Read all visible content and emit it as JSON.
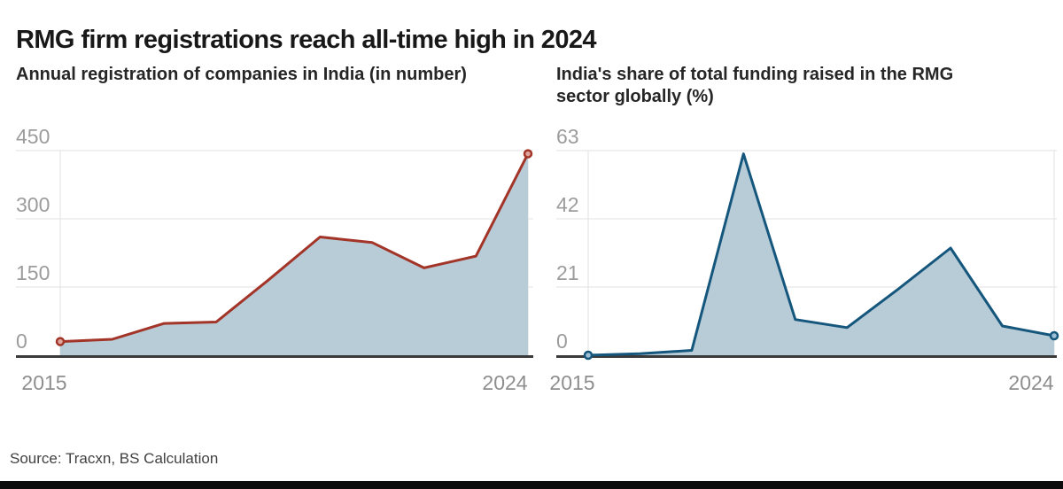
{
  "header": {
    "title": "RMG firm registrations reach all-time high in 2024"
  },
  "source": {
    "label": "Source: Tracxn, BS Calculation"
  },
  "chart_data": [
    {
      "type": "area",
      "title": "Annual registration of companies in India (in number)",
      "x": [
        2015,
        2016,
        2017,
        2018,
        2019,
        2020,
        2021,
        2022,
        2023,
        2024
      ],
      "values": [
        30,
        35,
        70,
        73,
        165,
        260,
        248,
        192,
        218,
        443
      ],
      "xlabel": "",
      "ylabel": "",
      "ylim": [
        0,
        450
      ],
      "yticks": [
        0,
        150,
        300,
        450
      ],
      "xticks": [
        "2015",
        "2024"
      ],
      "grid": true,
      "legend": "none",
      "line_color": "#a23428",
      "marker_fill": "#dfa59c",
      "area_color": "#b8ccd8",
      "markers_on": "first-and-last"
    },
    {
      "type": "area",
      "title": "India's share of total funding raised in the RMG sector globally (%)",
      "x": [
        2015,
        2016,
        2017,
        2018,
        2019,
        2020,
        2021,
        2022,
        2023,
        2024
      ],
      "values": [
        0,
        0.5,
        1.5,
        62,
        11,
        8.5,
        20.5,
        33,
        9,
        6
      ],
      "xlabel": "",
      "ylabel": "",
      "ylim": [
        0,
        63
      ],
      "yticks": [
        0,
        21,
        42,
        63
      ],
      "xticks": [
        "2015",
        "2024"
      ],
      "grid": true,
      "legend": "none",
      "line_color": "#15567d",
      "marker_fill": "#9fc0d4",
      "area_color": "#b8ccd8",
      "markers_on": "first-and-last"
    }
  ],
  "style": {
    "grid_color": "#e2e2e2",
    "baseline_color": "#3a3a3a",
    "ytick_color": "#9c9c9c",
    "xtick_color": "#8e8e8e"
  }
}
